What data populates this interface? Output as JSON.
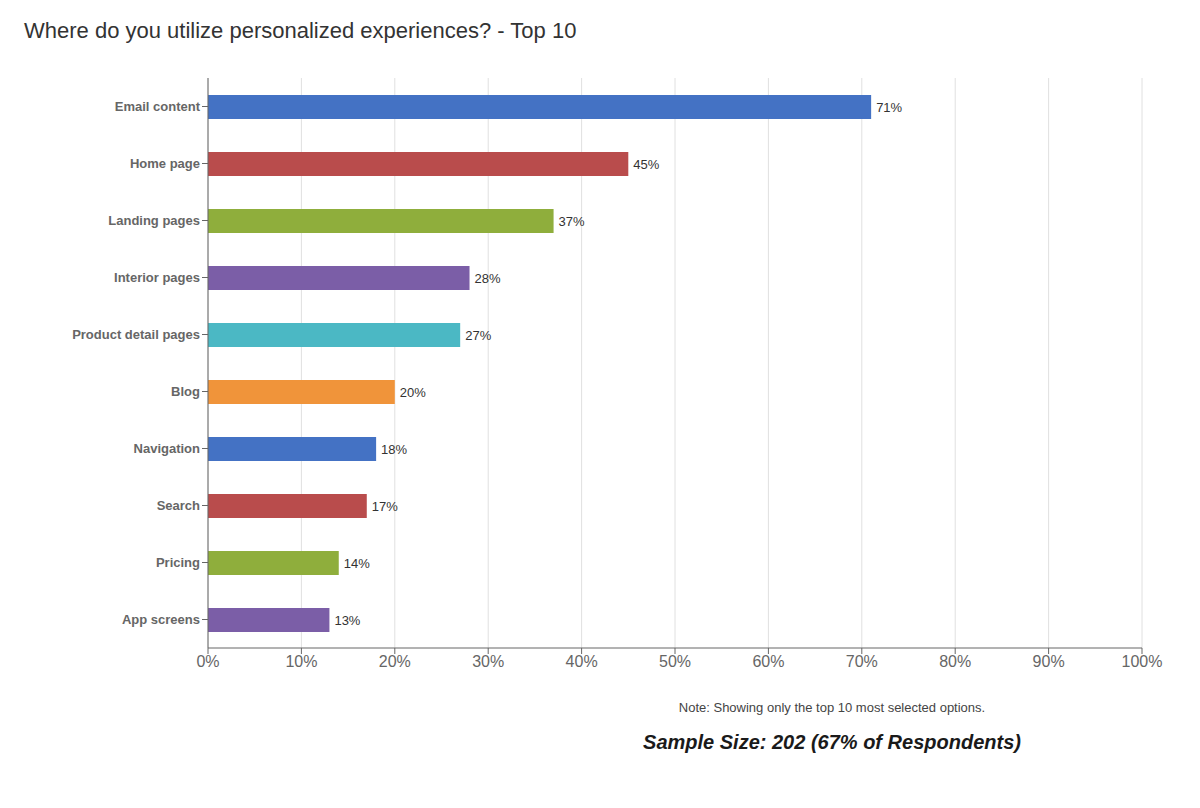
{
  "chart_data": {
    "type": "bar",
    "orientation": "horizontal",
    "title": "Where do you utilize personalized experiences? - Top 10",
    "categories": [
      "App screens",
      "Pricing",
      "Search",
      "Navigation",
      "Blog",
      "Product detail pages",
      "Interior pages",
      "Landing pages",
      "Home page",
      "Email content"
    ],
    "values": [
      13,
      14,
      17,
      18,
      20,
      27,
      28,
      37,
      45,
      71
    ],
    "value_labels": [
      "13%",
      "14%",
      "17%",
      "18%",
      "20%",
      "27%",
      "28%",
      "37%",
      "45%",
      "71%"
    ],
    "data_labels": true,
    "colors": [
      "#7b5ea7",
      "#8fae3c",
      "#b94c4c",
      "#4472c4",
      "#f0943a",
      "#4bb8c4",
      "#7b5ea7",
      "#8fae3c",
      "#b94c4c",
      "#4472c4"
    ],
    "xlim": [
      0,
      100
    ],
    "xticks": [
      {
        "value": 0,
        "label": "0%"
      },
      {
        "value": 10,
        "label": "10%"
      },
      {
        "value": 20,
        "label": "20%"
      },
      {
        "value": 30,
        "label": "30%"
      },
      {
        "value": 40,
        "label": "40%"
      },
      {
        "value": 50,
        "label": "50%"
      },
      {
        "value": 60,
        "label": "60%"
      },
      {
        "value": 70,
        "label": "70%"
      },
      {
        "value": 80,
        "label": "80%"
      },
      {
        "value": 90,
        "label": "90%"
      },
      {
        "value": 100,
        "label": "100%"
      }
    ],
    "grid": true,
    "annotations": [
      "Note: Showing only the top 10 most selected options.",
      "Sample Size: 202 (67% of Respondents)"
    ]
  }
}
